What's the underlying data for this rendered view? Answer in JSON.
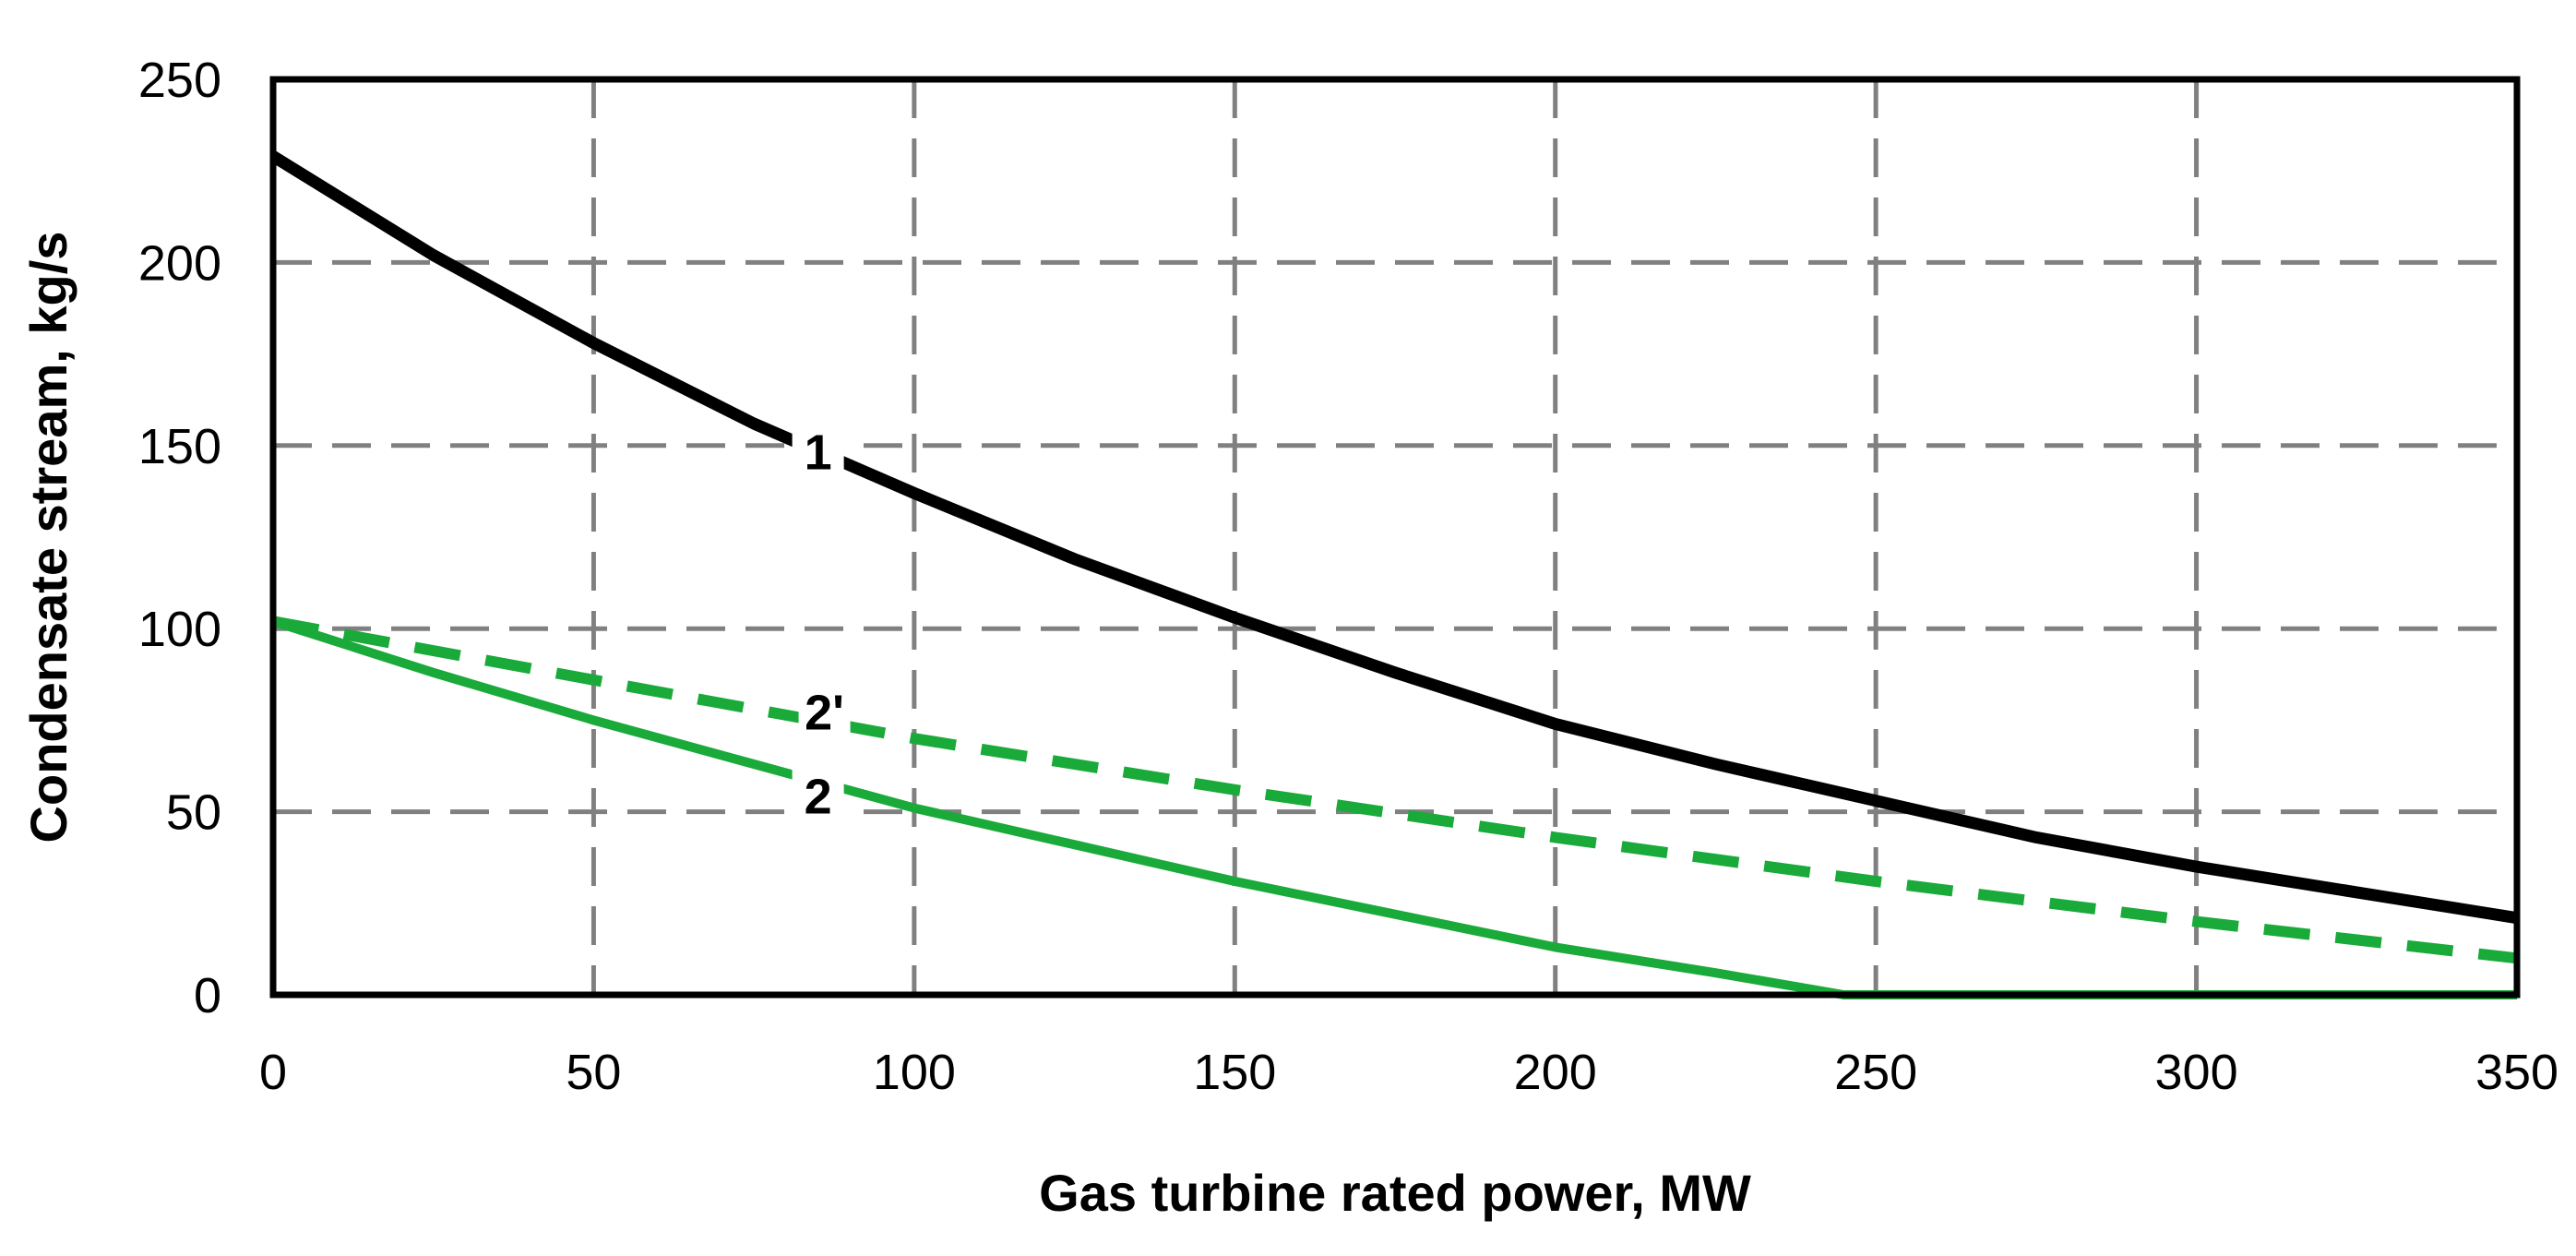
{
  "chart_data": {
    "type": "line",
    "title": "",
    "xlabel": "Gas turbine rated power, MW",
    "ylabel": "Condensate stream, kg/s",
    "xlim": [
      0,
      350
    ],
    "ylim": [
      0,
      250
    ],
    "xticks": [
      0,
      50,
      100,
      150,
      200,
      250,
      300,
      350
    ],
    "yticks": [
      0,
      50,
      100,
      150,
      200,
      250
    ],
    "x_tick_labels": [
      "0",
      "50",
      "100",
      "150",
      "200",
      "250",
      "300",
      "350"
    ],
    "y_tick_labels": [
      "0",
      "50",
      "100",
      "150",
      "200",
      "250"
    ],
    "grid": true,
    "series": [
      {
        "name": "1",
        "label": "1",
        "color": "#000000",
        "style": "solid",
        "x": [
          0,
          25,
          50,
          75,
          100,
          125,
          150,
          175,
          200,
          225,
          250,
          275,
          300,
          325,
          350
        ],
        "y": [
          229,
          202,
          178,
          156,
          137,
          119,
          103,
          88,
          74,
          63,
          53,
          43,
          35,
          28,
          21
        ],
        "label_at": [
          85,
          148
        ]
      },
      {
        "name": "2'",
        "label": "2'",
        "color": "#1aaa3a",
        "style": "dashed",
        "x": [
          0,
          50,
          100,
          150,
          200,
          250,
          300,
          350
        ],
        "y": [
          102,
          86,
          70,
          56,
          43,
          31,
          20,
          10
        ],
        "label_at": [
          86,
          77
        ]
      },
      {
        "name": "2",
        "label": "2",
        "color": "#1aaa3a",
        "style": "solid",
        "x": [
          0,
          25,
          50,
          75,
          100,
          125,
          150,
          175,
          200,
          225,
          245,
          350
        ],
        "y": [
          102,
          88,
          75,
          63,
          51,
          41,
          31,
          22,
          13,
          6,
          0,
          0
        ],
        "label_at": [
          85,
          54
        ]
      }
    ]
  }
}
